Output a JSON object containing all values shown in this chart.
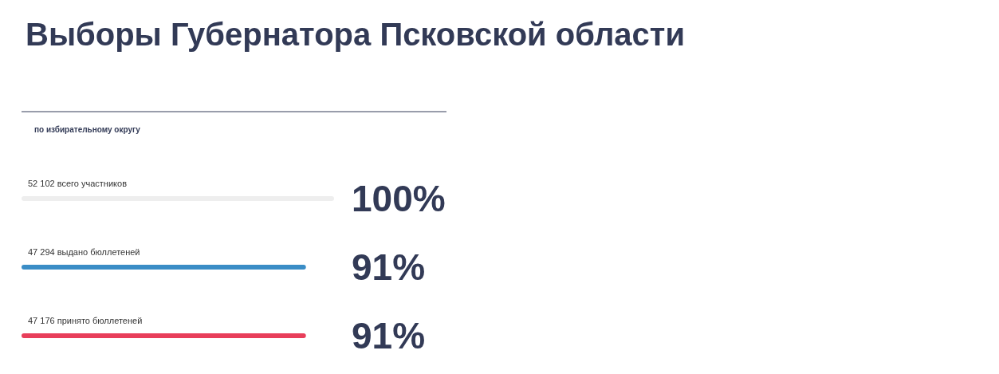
{
  "chart_data": {
    "type": "bar",
    "orientation": "horizontal",
    "title": "Выборы Губернатора Псковской области",
    "subtitle": "по избирательному округу",
    "categories": [
      "52 102 всего участников",
      "47 294 выдано бюллетеней",
      "47 176 принято бюллетеней"
    ],
    "values": [
      100,
      91,
      91
    ],
    "colors": [
      "#eeeeee",
      "#3a8dc6",
      "#e83e5a"
    ],
    "value_labels": [
      "100%",
      "91%",
      "91%"
    ],
    "xlim": [
      0,
      100
    ],
    "tick_labels": "y"
  }
}
